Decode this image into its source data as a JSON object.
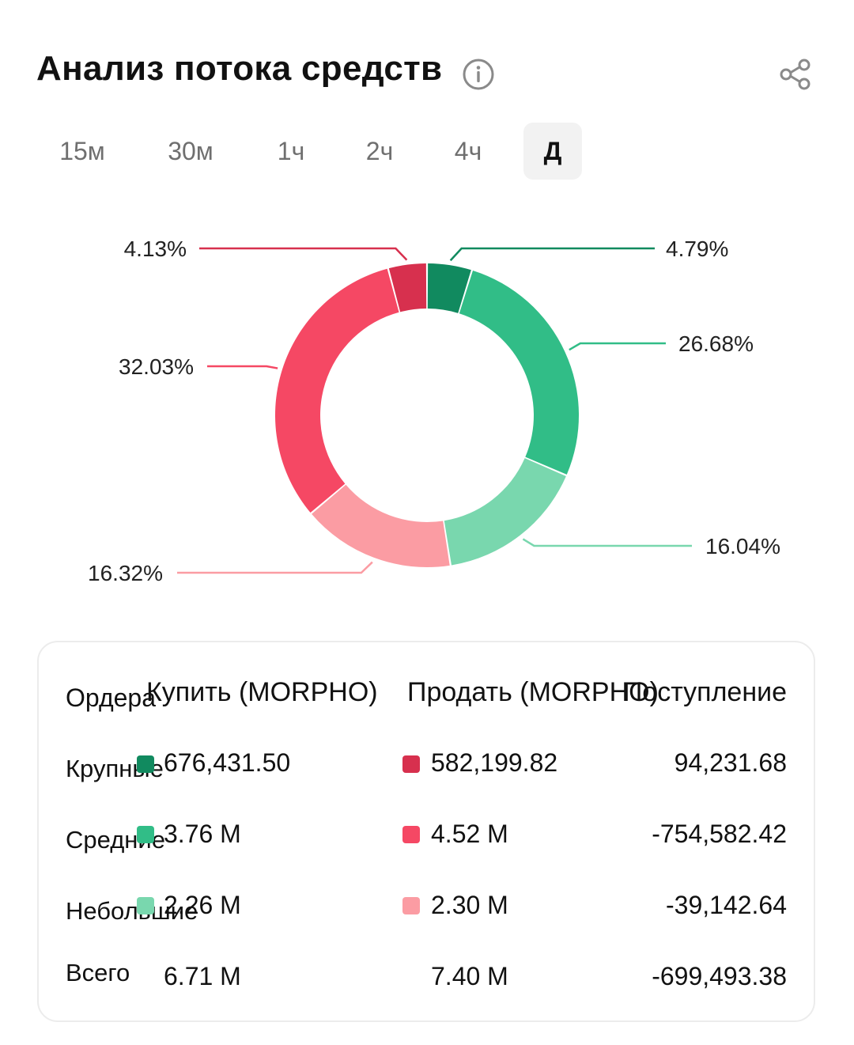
{
  "header": {
    "title": "Анализ потока средств"
  },
  "tabs": [
    {
      "label": "15м",
      "active": false
    },
    {
      "label": "30м",
      "active": false
    },
    {
      "label": "1ч",
      "active": false
    },
    {
      "label": "2ч",
      "active": false
    },
    {
      "label": "4ч",
      "active": false
    },
    {
      "label": "Д",
      "active": true
    }
  ],
  "colors": {
    "buy_large": "#118a5f",
    "buy_medium": "#31bd87",
    "buy_small": "#79d7ae",
    "sell_large": "#d7304e",
    "sell_medium": "#f54864",
    "sell_small": "#fb9ca3"
  },
  "chart_data": {
    "type": "pie",
    "slices": [
      {
        "label": "4.79%",
        "value": 4.79,
        "color": "#118a5f"
      },
      {
        "label": "26.68%",
        "value": 26.68,
        "color": "#31bd87"
      },
      {
        "label": "16.04%",
        "value": 16.04,
        "color": "#79d7ae"
      },
      {
        "label": "16.32%",
        "value": 16.32,
        "color": "#fb9ca3"
      },
      {
        "label": "32.03%",
        "value": 32.03,
        "color": "#f54864"
      },
      {
        "label": "4.13%",
        "value": 4.13,
        "color": "#d7304e"
      }
    ]
  },
  "table": {
    "headers": {
      "orders": "Ордера",
      "buy": "Купить (MORPHO)",
      "sell": "Продать (MORPHO)",
      "inflow": "Поступление"
    },
    "rows": [
      {
        "label": "Крупные",
        "buy": "676,431.50",
        "sell": "582,199.82",
        "inflow": "94,231.68",
        "buy_color": "#118a5f",
        "sell_color": "#d7304e"
      },
      {
        "label": "Средние",
        "buy": "3.76 M",
        "sell": "4.52 M",
        "inflow": "-754,582.42",
        "buy_color": "#31bd87",
        "sell_color": "#f54864"
      },
      {
        "label": "Небольшие",
        "buy": "2.26 M",
        "sell": "2.30 M",
        "inflow": "-39,142.64",
        "buy_color": "#79d7ae",
        "sell_color": "#fb9ca3"
      }
    ],
    "total": {
      "label": "Всего",
      "buy": "6.71 M",
      "sell": "7.40 M",
      "inflow": "-699,493.38"
    }
  }
}
